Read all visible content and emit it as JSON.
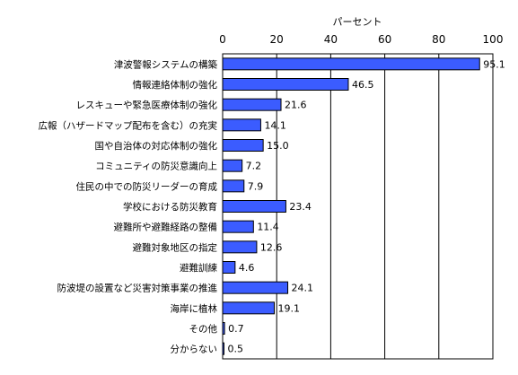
{
  "chart_data": {
    "type": "bar",
    "orientation": "horizontal",
    "unit_label": "パーセント",
    "xlim": [
      0,
      100
    ],
    "x_ticks": [
      0,
      20,
      40,
      60,
      80,
      100
    ],
    "grid": true,
    "bar_color": "#3b5cff",
    "categories": [
      "津波警報システムの構築",
      "情報連絡体制の強化",
      "レスキューや緊急医療体制の強化",
      "広報（ハザードマップ配布を含む）の充実",
      "国や自治体の対応体制の強化",
      "コミュニティの防災意識向上",
      "住民の中での防災リーダーの育成",
      "学校における防災教育",
      "避難所や避難経路の整備",
      "避難対象地区の指定",
      "避難訓練",
      "防波堤の設置など災害対策事業の推進",
      "海岸に植林",
      "その他",
      "分からない"
    ],
    "values": [
      95.1,
      46.5,
      21.6,
      14.1,
      15.0,
      7.2,
      7.9,
      23.4,
      11.4,
      12.6,
      4.6,
      24.1,
      19.1,
      0.7,
      0.5
    ],
    "value_labels": [
      "95.1",
      "46.5",
      "21.6",
      "14.1",
      "15.0",
      "7.2",
      "7.9",
      "23.4",
      "11.4",
      "12.6",
      "4.6",
      "24.1",
      "19.1",
      "0.7",
      "0.5"
    ]
  }
}
